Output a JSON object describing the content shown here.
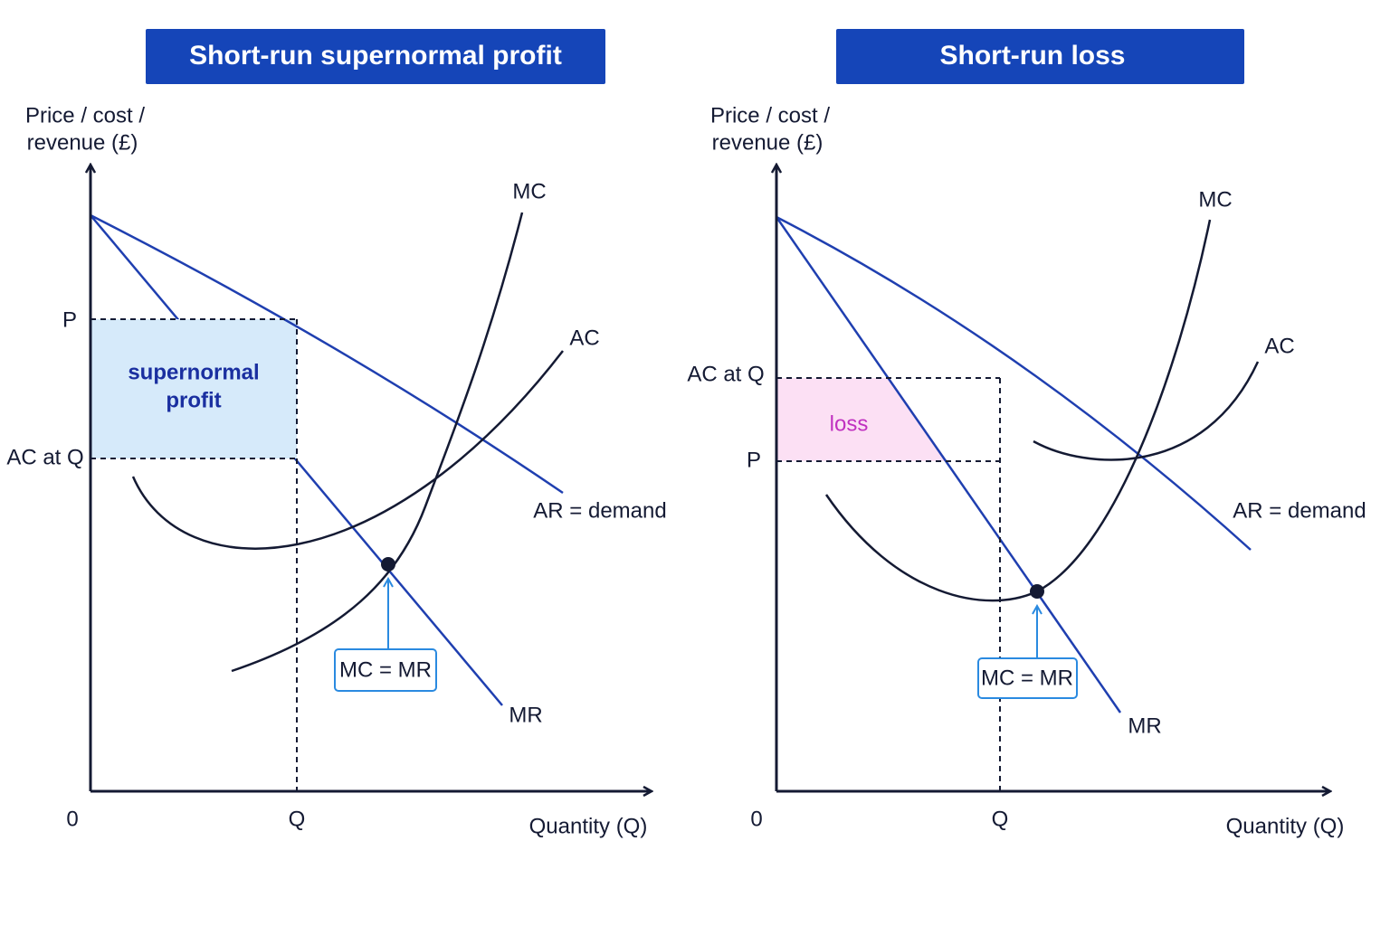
{
  "panels": [
    {
      "title": "Short-run supernormal profit",
      "y_axis_label": [
        "Price / cost /",
        "revenue (£)"
      ],
      "x_axis_label": "Quantity (Q)",
      "origin": "0",
      "q_label": "Q",
      "price_label": "P",
      "ac_label": "AC at Q",
      "curves": {
        "mc": "MC",
        "ac": "AC",
        "ar": "AR = demand",
        "mr": "MR"
      },
      "equilibrium": "MC = MR",
      "area_label": [
        "supernormal",
        "profit"
      ]
    },
    {
      "title": "Short-run loss",
      "y_axis_label": [
        "Price / cost /",
        "revenue (£)"
      ],
      "x_axis_label": "Quantity (Q)",
      "origin": "0",
      "q_label": "Q",
      "price_label": "P",
      "ac_label": "AC at Q",
      "curves": {
        "mc": "MC",
        "ac": "AC",
        "ar": "AR = demand",
        "mr": "MR"
      },
      "equilibrium": "MC = MR",
      "area_label": [
        "loss"
      ]
    }
  ]
}
